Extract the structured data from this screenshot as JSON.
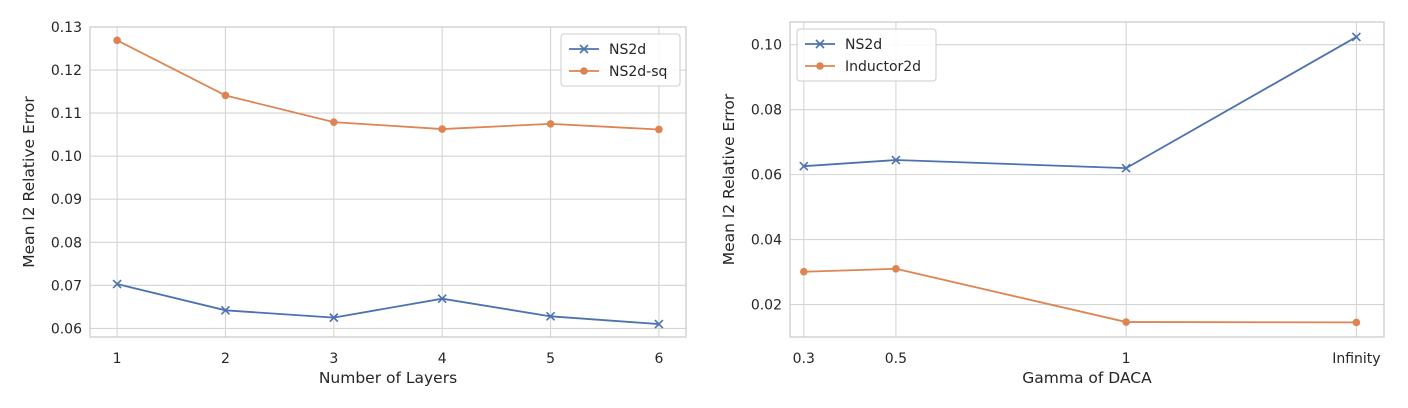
{
  "chart_data": [
    {
      "type": "line",
      "xlabel": "Number of Layers",
      "ylabel": "Mean l2 Relative Error",
      "x": [
        1,
        2,
        3,
        4,
        5,
        6
      ],
      "x_tick_labels": [
        "1",
        "2",
        "3",
        "4",
        "5",
        "6"
      ],
      "xlim": [
        0.75,
        6.25
      ],
      "ylim": [
        0.058,
        0.13
      ],
      "y_ticks": [
        0.06,
        0.07,
        0.08,
        0.09,
        0.1,
        0.11,
        0.12,
        0.13
      ],
      "y_tick_labels": [
        "0.06",
        "0.07",
        "0.08",
        "0.09",
        "0.10",
        "0.11",
        "0.12",
        "0.13"
      ],
      "grid": true,
      "legend_position": "top-right",
      "series": [
        {
          "name": "NS2d",
          "marker": "x",
          "color": "#4c72b0",
          "values": [
            0.0703,
            0.0642,
            0.0625,
            0.0669,
            0.0628,
            0.061
          ]
        },
        {
          "name": "NS2d-sq",
          "marker": "o",
          "color": "#dd8452",
          "values": [
            0.1269,
            0.1141,
            0.1079,
            0.1063,
            0.1075,
            0.1062
          ]
        }
      ]
    },
    {
      "type": "line",
      "xlabel": "Gamma of DACA",
      "ylabel": "Mean l2 Relative Error",
      "x": [
        0.3,
        0.5,
        1.0,
        1.5
      ],
      "x_tick_labels": [
        "0.3",
        "0.5",
        "1",
        "Infinity"
      ],
      "xlim": [
        0.27,
        1.56
      ],
      "ylim": [
        0.01,
        0.107
      ],
      "y_ticks": [
        0.02,
        0.04,
        0.06,
        0.08,
        0.1
      ],
      "y_tick_labels": [
        "0.02",
        "0.04",
        "0.06",
        "0.08",
        "0.10"
      ],
      "grid": true,
      "legend_position": "top-left",
      "series": [
        {
          "name": "NS2d",
          "marker": "x",
          "color": "#4c72b0",
          "values": [
            0.0626,
            0.0645,
            0.062,
            0.1024
          ]
        },
        {
          "name": "Inductor2d",
          "marker": "o",
          "color": "#dd8452",
          "values": [
            0.0301,
            0.031,
            0.0146,
            0.0145
          ]
        }
      ]
    }
  ]
}
